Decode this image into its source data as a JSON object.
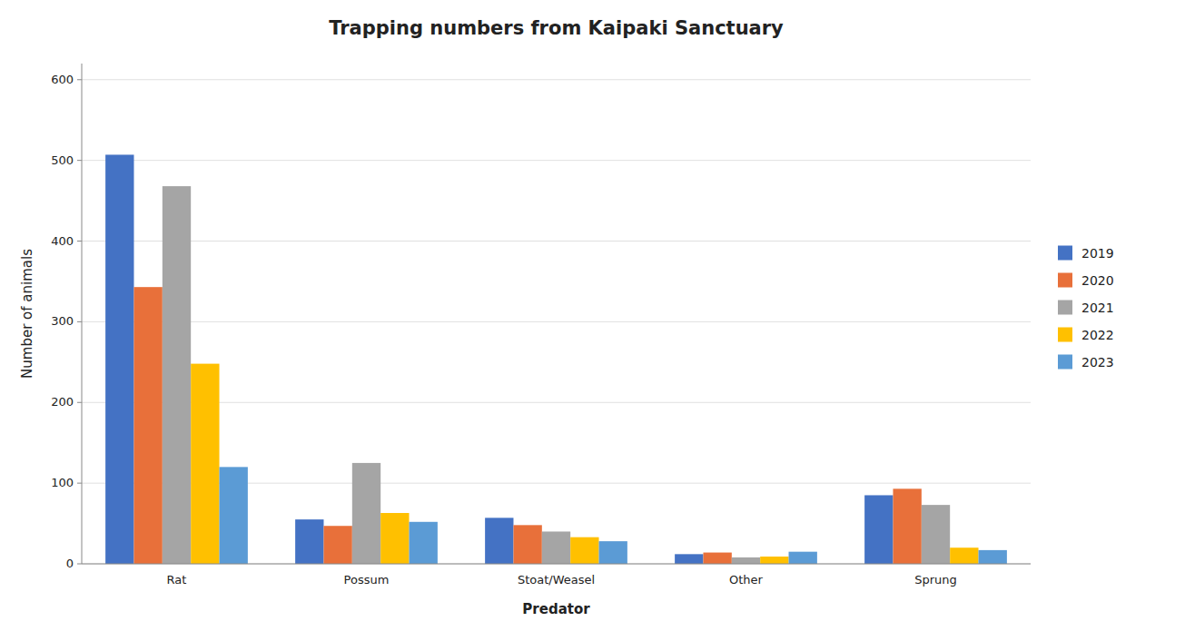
{
  "chart_data": {
    "type": "bar",
    "title": "Trapping numbers from Kaipaki Sanctuary",
    "xlabel": "Predator",
    "ylabel": "Number of animals",
    "categories": [
      "Rat",
      "Possum",
      "Stoat/Weasel",
      "Other",
      "Sprung"
    ],
    "series": [
      {
        "name": "2019",
        "color": "#4472C4",
        "values": [
          507,
          55,
          57,
          12,
          85
        ]
      },
      {
        "name": "2020",
        "color": "#E8703A",
        "values": [
          343,
          47,
          48,
          14,
          93
        ]
      },
      {
        "name": "2021",
        "color": "#A5A5A5",
        "values": [
          468,
          125,
          40,
          8,
          73
        ]
      },
      {
        "name": "2022",
        "color": "#FFC000",
        "values": [
          248,
          63,
          33,
          9,
          20
        ]
      },
      {
        "name": "2023",
        "color": "#5B9BD5",
        "values": [
          120,
          52,
          28,
          15,
          17
        ]
      }
    ],
    "ylim": [
      0,
      620
    ],
    "yticks": [
      0,
      100,
      200,
      300,
      400,
      500,
      600
    ],
    "grid": true,
    "legend": "right"
  }
}
